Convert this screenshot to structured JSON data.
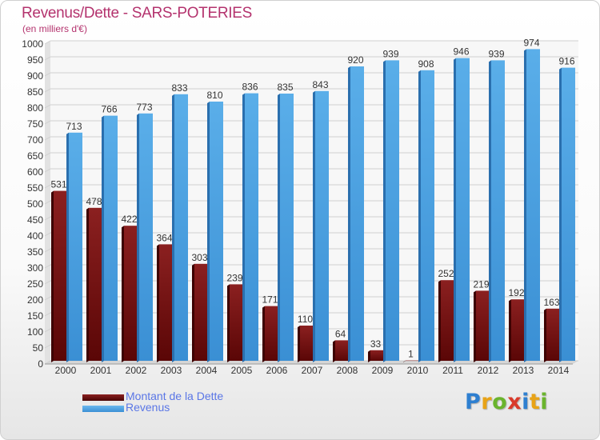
{
  "header": {
    "title": "Revenus/Dette - SARS-POTERIES",
    "subtitle": "(en milliers d'€)"
  },
  "chart_data": {
    "type": "bar",
    "title": "Revenus/Dette - SARS-POTERIES",
    "ylabel": "(en milliers d'€)",
    "xlabel": "",
    "ylim": [
      0,
      1000
    ],
    "yticks": [
      0,
      50,
      100,
      150,
      200,
      250,
      300,
      350,
      400,
      450,
      500,
      550,
      600,
      650,
      700,
      750,
      800,
      850,
      900,
      950,
      1000
    ],
    "grid": true,
    "legend_position": "bottom-left",
    "categories": [
      "2000",
      "2001",
      "2002",
      "2003",
      "2004",
      "2005",
      "2006",
      "2007",
      "2008",
      "2009",
      "2010",
      "2011",
      "2012",
      "2013",
      "2014"
    ],
    "series": [
      {
        "name": "Montant de la Dette",
        "color": "#7a1414",
        "values": [
          531,
          478,
          422,
          364,
          303,
          239,
          171,
          110,
          64,
          33,
          1,
          252,
          219,
          192,
          163
        ]
      },
      {
        "name": "Revenus",
        "color": "#4a9fe0",
        "values": [
          713,
          766,
          773,
          833,
          810,
          836,
          835,
          843,
          920,
          939,
          908,
          946,
          939,
          974,
          916
        ]
      }
    ]
  },
  "legend": {
    "debt_label": "Montant de la Dette",
    "revenue_label": "Revenus"
  },
  "logo": {
    "letters": [
      "P",
      "r",
      "o",
      "x",
      "i",
      "t",
      "i"
    ],
    "colors": [
      "#2e7fd0",
      "#e8a317",
      "#6ab42d",
      "#d93a2b",
      "#2e7fd0",
      "#e8a317",
      "#6ab42d"
    ]
  }
}
